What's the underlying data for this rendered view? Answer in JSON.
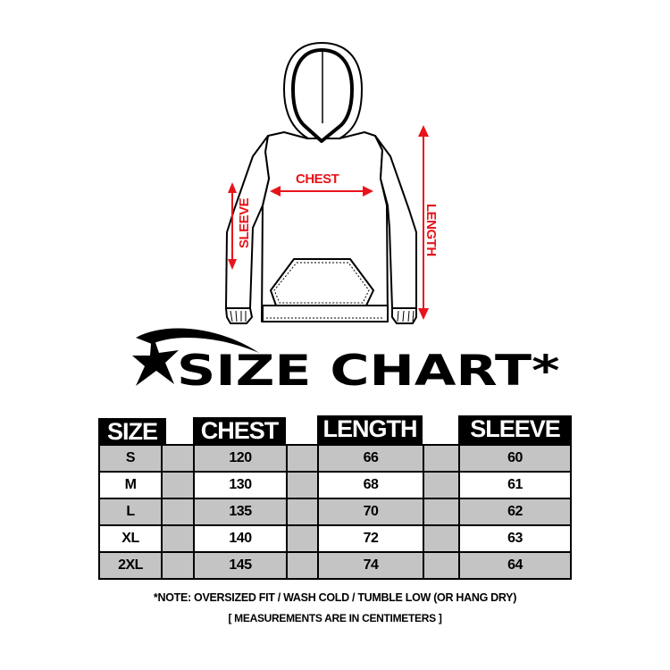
{
  "diagram": {
    "labels": {
      "chest": "CHEST",
      "sleeve": "SLEEVE",
      "length": "LENGTH"
    },
    "arrow_color": "#e8141b"
  },
  "title": "SIZE CHART*",
  "table": {
    "headers": [
      "SIZE",
      "CHEST",
      "LENGTH",
      "SLEEVE"
    ],
    "rows": [
      {
        "size": "S",
        "chest": "120",
        "length": "66",
        "sleeve": "60"
      },
      {
        "size": "M",
        "chest": "130",
        "length": "68",
        "sleeve": "61"
      },
      {
        "size": "L",
        "chest": "135",
        "length": "70",
        "sleeve": "62"
      },
      {
        "size": "XL",
        "chest": "140",
        "length": "72",
        "sleeve": "63"
      },
      {
        "size": "2XL",
        "chest": "145",
        "length": "74",
        "sleeve": "64"
      }
    ],
    "row_colors": [
      "#c4c4c4",
      "#ffffff"
    ]
  },
  "notes": {
    "care": "*NOTE: OVERSIZED FIT / WASH COLD / TUMBLE LOW (OR HANG DRY)",
    "units": "[ MEASUREMENTS ARE IN CENTIMETERS ]"
  }
}
